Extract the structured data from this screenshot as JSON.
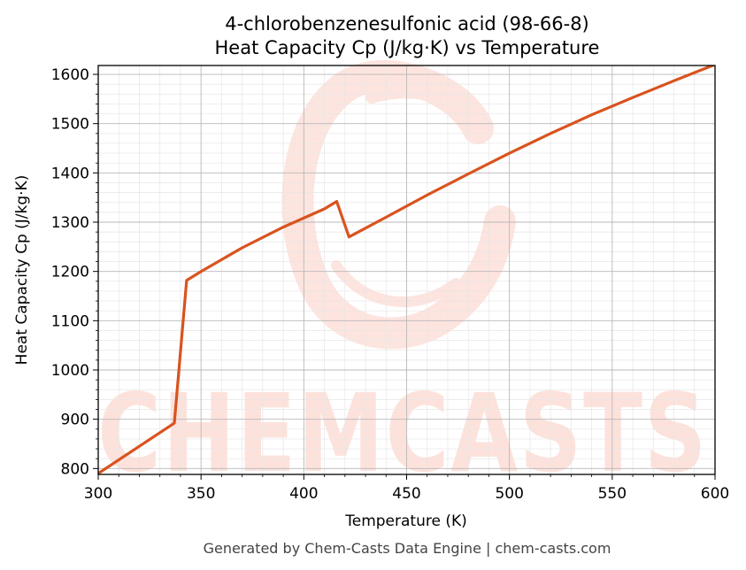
{
  "chart_data": {
    "type": "line",
    "title_line1": "4-chlorobenzenesulfonic acid (98-66-8)",
    "title_line2": "Heat Capacity Cp (J/kg·K) vs Temperature",
    "xlabel": "Temperature (K)",
    "ylabel": "Heat Capacity Cp (J/kg·K)",
    "xlim": [
      300,
      600
    ],
    "ylim": [
      788,
      1618
    ],
    "x_ticks": [
      300,
      350,
      400,
      450,
      500,
      550,
      600
    ],
    "y_ticks": [
      800,
      900,
      1000,
      1100,
      1200,
      1300,
      1400,
      1500,
      1600
    ],
    "grid": true,
    "series": [
      {
        "color": "#d9531e",
        "points": [
          [
            300,
            790
          ],
          [
            337,
            892
          ],
          [
            343,
            1182
          ],
          [
            350,
            1200
          ],
          [
            370,
            1248
          ],
          [
            390,
            1290
          ],
          [
            410,
            1327
          ],
          [
            416,
            1342
          ],
          [
            422,
            1270
          ],
          [
            440,
            1310
          ],
          [
            460,
            1355
          ],
          [
            480,
            1398
          ],
          [
            500,
            1440
          ],
          [
            520,
            1480
          ],
          [
            540,
            1518
          ],
          [
            560,
            1553
          ],
          [
            580,
            1587
          ],
          [
            600,
            1620
          ]
        ]
      }
    ]
  },
  "watermark": {
    "text": "CHEMCASTS",
    "color": "#fde2dc"
  },
  "footer": "Generated by Chem-Casts Data Engine | chem-casts.com"
}
